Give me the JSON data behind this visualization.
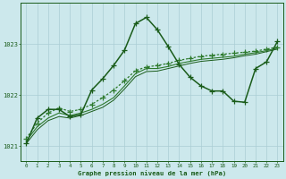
{
  "background_color": "#cce8ec",
  "grid_color": "#aacdd4",
  "line_color_dark": "#1a5c1a",
  "xlabel": "Graphe pression niveau de la mer (hPa)",
  "xlim": [
    -0.5,
    23.5
  ],
  "ylim": [
    1020.7,
    1023.8
  ],
  "yticks": [
    1021,
    1022,
    1023
  ],
  "xticks": [
    0,
    1,
    2,
    3,
    4,
    5,
    6,
    7,
    8,
    9,
    10,
    11,
    12,
    13,
    14,
    15,
    16,
    17,
    18,
    19,
    20,
    21,
    22,
    23
  ],
  "series": [
    {
      "x": [
        0,
        1,
        2,
        3,
        4,
        5,
        6,
        7,
        8,
        9,
        10,
        11,
        12,
        13,
        14,
        15,
        16,
        17,
        18,
        19,
        20,
        21,
        22,
        23
      ],
      "y": [
        1021.15,
        1021.45,
        1021.65,
        1021.75,
        1021.68,
        1021.72,
        1021.82,
        1021.95,
        1022.1,
        1022.28,
        1022.48,
        1022.55,
        1022.58,
        1022.62,
        1022.68,
        1022.72,
        1022.76,
        1022.78,
        1022.8,
        1022.82,
        1022.84,
        1022.86,
        1022.9,
        1022.94
      ],
      "style": "dotted",
      "marker": "+",
      "color": "#2d7a2d",
      "linewidth": 0.9,
      "markersize": 4.0
    },
    {
      "x": [
        0,
        1,
        2,
        3,
        4,
        5,
        6,
        7,
        8,
        9,
        10,
        11,
        12,
        13,
        14,
        15,
        16,
        17,
        18,
        19,
        20,
        21,
        22,
        23
      ],
      "y": [
        1021.1,
        1021.38,
        1021.55,
        1021.65,
        1021.6,
        1021.65,
        1021.72,
        1021.82,
        1021.95,
        1022.18,
        1022.42,
        1022.52,
        1022.52,
        1022.56,
        1022.62,
        1022.66,
        1022.7,
        1022.72,
        1022.74,
        1022.76,
        1022.8,
        1022.83,
        1022.87,
        1022.92
      ],
      "style": "solid",
      "marker": null,
      "color": "#2d7a2d",
      "linewidth": 0.8,
      "markersize": 0
    },
    {
      "x": [
        0,
        1,
        2,
        3,
        4,
        5,
        6,
        7,
        8,
        9,
        10,
        11,
        12,
        13,
        14,
        15,
        16,
        17,
        18,
        19,
        20,
        21,
        22,
        23
      ],
      "y": [
        1021.05,
        1021.32,
        1021.5,
        1021.58,
        1021.55,
        1021.6,
        1021.68,
        1021.76,
        1021.9,
        1022.12,
        1022.36,
        1022.46,
        1022.47,
        1022.52,
        1022.57,
        1022.62,
        1022.66,
        1022.68,
        1022.7,
        1022.73,
        1022.77,
        1022.8,
        1022.85,
        1022.9
      ],
      "style": "solid",
      "marker": null,
      "color": "#1a5c1a",
      "linewidth": 0.7,
      "markersize": 0
    },
    {
      "x": [
        0,
        1,
        2,
        3,
        4,
        5,
        6,
        7,
        8,
        9,
        10,
        11,
        12,
        13,
        14,
        15,
        16,
        17,
        18,
        19,
        20,
        21,
        22,
        23
      ],
      "y": [
        1021.05,
        1021.55,
        1021.72,
        1021.72,
        1021.58,
        1021.62,
        1022.1,
        1022.32,
        1022.58,
        1022.88,
        1023.4,
        1023.52,
        1023.28,
        1022.95,
        1022.6,
        1022.35,
        1022.18,
        1022.08,
        1022.08,
        1021.88,
        1021.86,
        1022.52,
        1022.65,
        1023.05
      ],
      "style": "solid",
      "marker": "+",
      "color": "#1a5c1a",
      "linewidth": 1.1,
      "markersize": 5.0
    }
  ]
}
